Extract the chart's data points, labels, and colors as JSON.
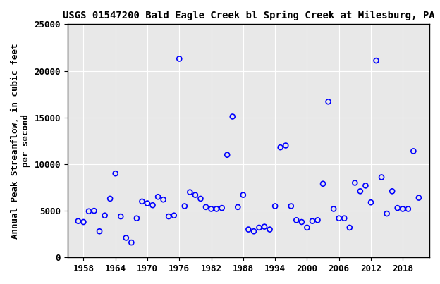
{
  "title": "USGS 01547200 Bald Eagle Creek bl Spring Creek at Milesburg, PA",
  "ylabel": "Annual Peak Streamflow, in cubic feet\nper second",
  "xlabel": "",
  "years": [
    1957,
    1958,
    1959,
    1960,
    1961,
    1962,
    1963,
    1964,
    1965,
    1966,
    1967,
    1968,
    1969,
    1970,
    1971,
    1972,
    1973,
    1974,
    1975,
    1976,
    1977,
    1978,
    1979,
    1980,
    1981,
    1982,
    1983,
    1984,
    1985,
    1986,
    1987,
    1988,
    1989,
    1990,
    1991,
    1992,
    1993,
    1994,
    1995,
    1996,
    1997,
    1998,
    1999,
    2000,
    2001,
    2002,
    2003,
    2004,
    2005,
    2006,
    2007,
    2008,
    2009,
    2010,
    2011,
    2012,
    2013,
    2014,
    2015,
    2016,
    2017,
    2018,
    2019,
    2020,
    2021
  ],
  "flows": [
    3900,
    3800,
    4950,
    5000,
    2800,
    4500,
    6300,
    9000,
    4400,
    2100,
    1600,
    4200,
    6000,
    5800,
    5600,
    6500,
    6200,
    4400,
    4500,
    21300,
    5500,
    7000,
    6700,
    6300,
    5400,
    5200,
    5200,
    5300,
    11000,
    15100,
    5400,
    6700,
    3000,
    2800,
    3200,
    3300,
    3000,
    5500,
    11800,
    12000,
    5500,
    4000,
    3800,
    3200,
    3900,
    4000,
    7900,
    16700,
    5200,
    4200,
    4200,
    3200,
    8000,
    7100,
    7700,
    5900,
    21100,
    8600,
    4700,
    7100,
    5300,
    5200,
    5200,
    11400,
    6400
  ],
  "xlim": [
    1955,
    2023
  ],
  "ylim": [
    0,
    25000
  ],
  "xticks": [
    1958,
    1964,
    1970,
    1976,
    1982,
    1988,
    1994,
    2000,
    2006,
    2012,
    2018
  ],
  "yticks": [
    0,
    5000,
    10000,
    15000,
    20000,
    25000
  ],
  "marker_color": "blue",
  "marker": "o",
  "marker_size": 5,
  "bg_color": "#e8e8e8",
  "grid_color": "white",
  "title_fontsize": 10,
  "label_fontsize": 9,
  "tick_fontsize": 9,
  "font_family": "monospace"
}
